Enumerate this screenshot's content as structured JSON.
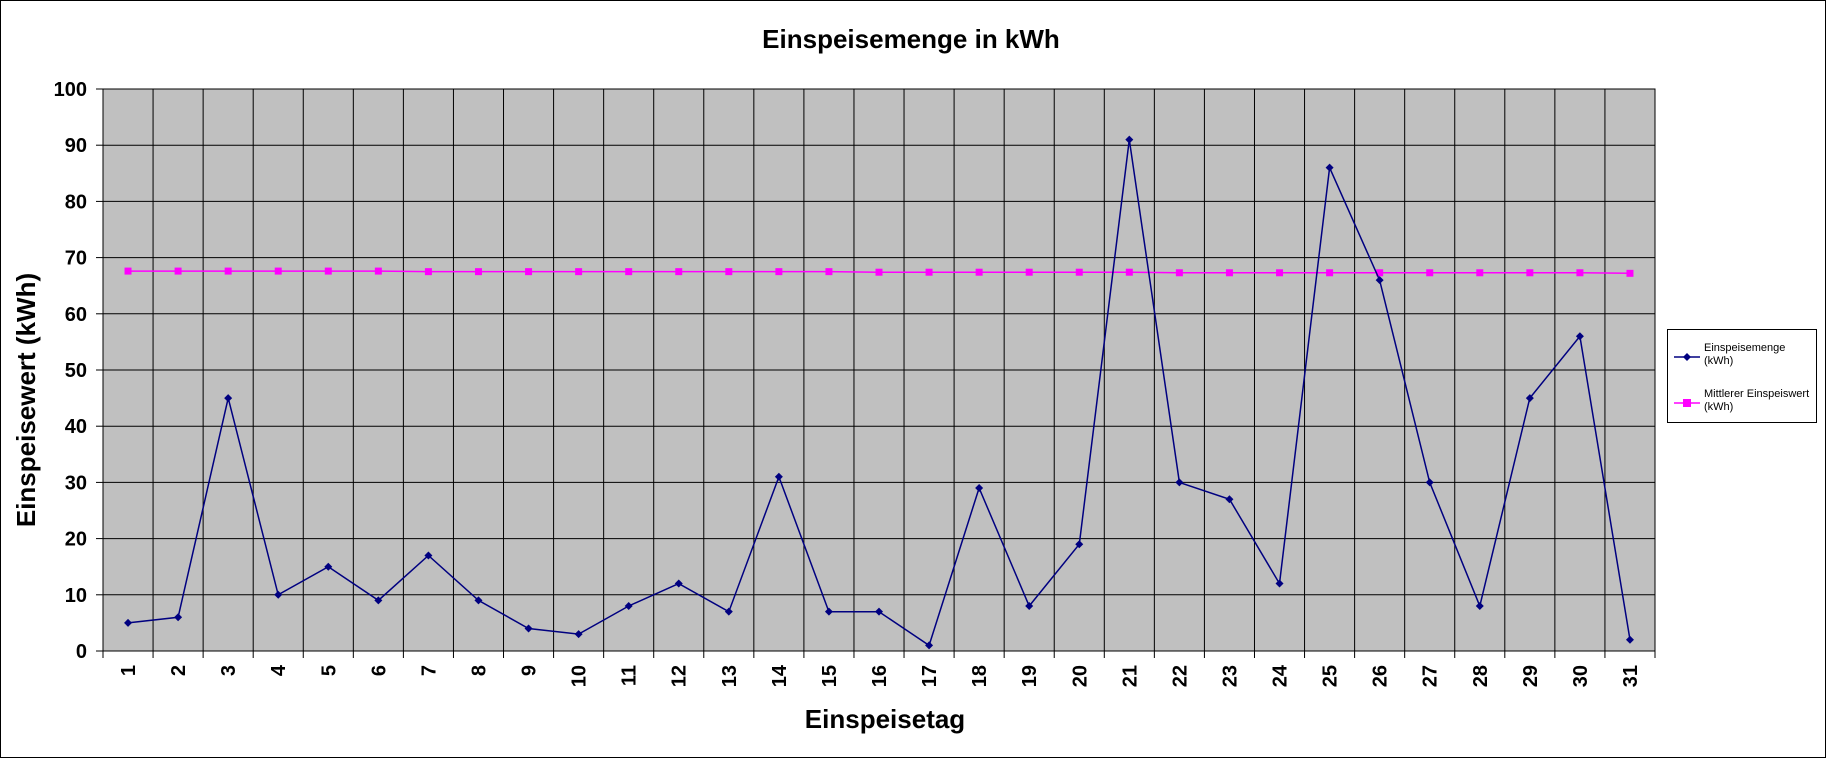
{
  "chart_data": {
    "type": "line",
    "title": "Einspeisemenge in kWh",
    "xlabel": "Einspeisetag",
    "ylabel": "Einspeisewert  (kWh)",
    "categories": [
      "1",
      "2",
      "3",
      "4",
      "5",
      "6",
      "7",
      "8",
      "9",
      "10",
      "11",
      "12",
      "13",
      "14",
      "15",
      "16",
      "17",
      "18",
      "19",
      "20",
      "21",
      "22",
      "23",
      "24",
      "25",
      "26",
      "27",
      "28",
      "29",
      "30",
      "31"
    ],
    "ylim": [
      0,
      100
    ],
    "yticks": [
      0,
      10,
      20,
      30,
      40,
      50,
      60,
      70,
      80,
      90,
      100
    ],
    "grid": true,
    "legend_position": "right",
    "plot_background": "#c0c0c0",
    "series": [
      {
        "name": "Einspeisemenge (kWh)",
        "name_lines": [
          "Einspeisemenge",
          "(kWh)"
        ],
        "color": "#000080",
        "marker": "diamond",
        "values": [
          5,
          6,
          45,
          10,
          15,
          9,
          17,
          9,
          4,
          3,
          8,
          12,
          7,
          31,
          7,
          7,
          1,
          29,
          8,
          19,
          91,
          30,
          27,
          12,
          86,
          66,
          30,
          8,
          45,
          56,
          2
        ]
      },
      {
        "name": "Mittlerer Einspeiswert (kWh)",
        "name_lines": [
          "Mittlerer Einspeiswert",
          "(kWh)"
        ],
        "color": "#ff00ff",
        "marker": "square",
        "values": [
          67.6,
          67.6,
          67.6,
          67.6,
          67.6,
          67.6,
          67.5,
          67.5,
          67.5,
          67.5,
          67.5,
          67.5,
          67.5,
          67.5,
          67.5,
          67.4,
          67.4,
          67.4,
          67.4,
          67.4,
          67.4,
          67.3,
          67.3,
          67.3,
          67.3,
          67.3,
          67.3,
          67.3,
          67.3,
          67.3,
          67.2
        ]
      }
    ]
  }
}
